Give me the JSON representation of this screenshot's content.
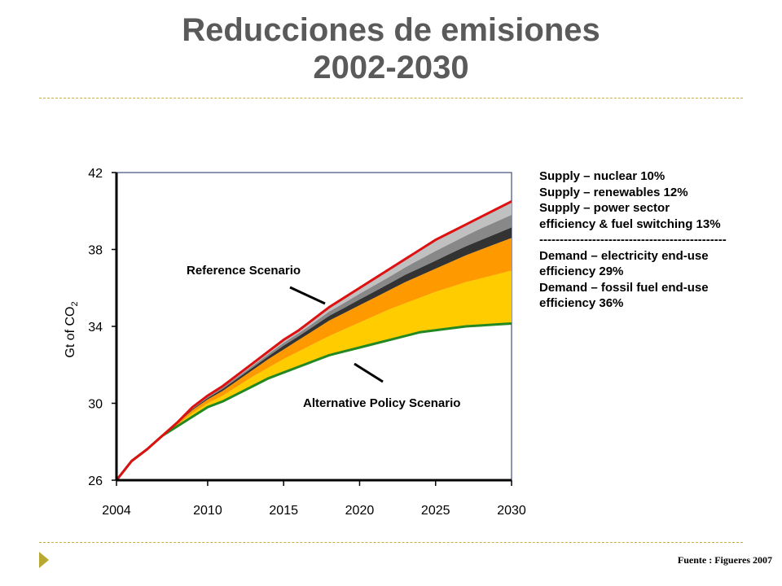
{
  "title_line1": "Reducciones de emisiones",
  "title_line2": "2002-2030",
  "source": "Fuente : Figueres 2007",
  "legend_lines": [
    "Supply – nuclear 10%",
    "Supply – renewables 12%",
    "Supply – power sector",
    "efficiency & fuel switching 13%",
    "----------------------------------------------",
    "Demand – electricity end-use",
    "efficiency 29%",
    "Demand – fossil fuel end-use",
    "efficiency 36%"
  ],
  "chart_data": {
    "type": "area",
    "ylabel": "Gt of CO",
    "ylabel_sub": "2",
    "xlim": [
      2004,
      2030
    ],
    "ylim": [
      26,
      42
    ],
    "x_ticks": [
      2004,
      2010,
      2015,
      2020,
      2025,
      2030
    ],
    "y_ticks": [
      26,
      30,
      34,
      38,
      42
    ],
    "annotations": {
      "reference": "Reference Scenario",
      "alternative": "Alternative Policy Scenario"
    },
    "x": [
      2004,
      2005,
      2006,
      2007,
      2008,
      2009,
      2010,
      2011,
      2012,
      2013,
      2014,
      2015,
      2016,
      2017,
      2018,
      2019,
      2020,
      2021,
      2022,
      2023,
      2024,
      2025,
      2026,
      2027,
      2028,
      2029,
      2030
    ],
    "reference": [
      26.0,
      27.0,
      27.6,
      28.3,
      29.0,
      29.8,
      30.4,
      30.9,
      31.5,
      32.1,
      32.7,
      33.3,
      33.8,
      34.4,
      35.0,
      35.5,
      36.0,
      36.5,
      37.0,
      37.5,
      38.0,
      38.5,
      38.9,
      39.3,
      39.7,
      40.1,
      40.5
    ],
    "alternative": [
      26.0,
      27.0,
      27.6,
      28.3,
      28.8,
      29.3,
      29.8,
      30.1,
      30.5,
      30.9,
      31.3,
      31.6,
      31.9,
      32.2,
      32.5,
      32.7,
      32.9,
      33.1,
      33.3,
      33.5,
      33.7,
      33.8,
      33.9,
      34.0,
      34.05,
      34.1,
      34.15
    ],
    "wedges": [
      {
        "label": "Demand – fossil fuel end-use efficiency 36%",
        "color": "#ffcc00",
        "top": [
          26.0,
          27.0,
          27.6,
          28.3,
          28.85,
          29.5,
          30.0,
          30.4,
          30.9,
          31.4,
          31.85,
          32.3,
          32.7,
          33.1,
          33.5,
          33.85,
          34.2,
          34.55,
          34.9,
          35.2,
          35.5,
          35.8,
          36.05,
          36.3,
          36.5,
          36.7,
          36.9
        ]
      },
      {
        "label": "Demand – electricity end-use efficiency 29%",
        "color": "#ff9900",
        "top": [
          26.0,
          27.0,
          27.6,
          28.3,
          28.95,
          29.65,
          30.2,
          30.65,
          31.2,
          31.75,
          32.3,
          32.8,
          33.3,
          33.8,
          34.3,
          34.7,
          35.1,
          35.5,
          35.9,
          36.3,
          36.65,
          37.0,
          37.35,
          37.7,
          38.0,
          38.3,
          38.6
        ]
      },
      {
        "label": "Supply – power sector efficiency & fuel switching 13%",
        "color": "#333333",
        "top": [
          26.0,
          27.0,
          27.6,
          28.3,
          28.97,
          29.7,
          30.27,
          30.75,
          31.32,
          31.88,
          32.45,
          33.0,
          33.5,
          34.02,
          34.55,
          34.97,
          35.4,
          35.82,
          36.25,
          36.68,
          37.05,
          37.42,
          37.8,
          38.17,
          38.5,
          38.82,
          39.15
        ]
      },
      {
        "label": "Supply – renewables 12%",
        "color": "#888888",
        "top": [
          26.0,
          27.0,
          27.6,
          28.3,
          28.99,
          29.75,
          30.33,
          30.83,
          31.4,
          31.98,
          32.57,
          33.15,
          33.65,
          34.2,
          34.77,
          35.23,
          35.7,
          36.15,
          36.6,
          37.07,
          37.5,
          37.92,
          38.32,
          38.72,
          39.1,
          39.45,
          39.8
        ]
      },
      {
        "label": "Supply – nuclear 10%",
        "color": "#c0c0c0",
        "top": [
          26.0,
          27.0,
          27.6,
          28.3,
          29.0,
          29.8,
          30.4,
          30.9,
          31.5,
          32.1,
          32.7,
          33.3,
          33.8,
          34.4,
          35.0,
          35.5,
          36.0,
          36.5,
          37.0,
          37.5,
          38.0,
          38.5,
          38.9,
          39.3,
          39.7,
          40.1,
          40.5
        ]
      }
    ],
    "colors": {
      "reference_line": "#dd1111",
      "alternative_line": "#228822"
    },
    "grid": false,
    "legend": "right"
  }
}
